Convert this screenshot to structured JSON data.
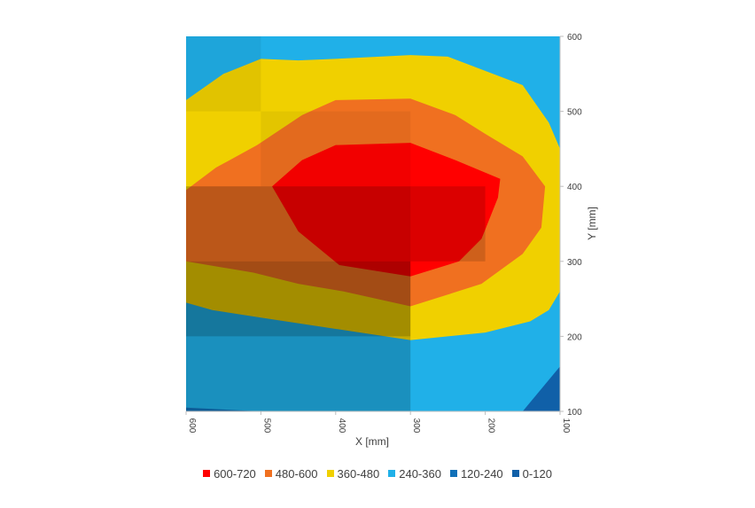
{
  "chart_data": {
    "type": "contour",
    "xlabel": "X [mm]",
    "ylabel": "Y [mm]",
    "xlim": [
      600,
      100
    ],
    "ylim": [
      100,
      600
    ],
    "x_ticks": [
      "600",
      "500",
      "400",
      "300",
      "200",
      "100"
    ],
    "y_ticks": [
      "600",
      "500",
      "400",
      "300",
      "200",
      "100"
    ],
    "x_reversed": true,
    "grid": false,
    "legend_position": "bottom",
    "bands": [
      {
        "label": "600-720",
        "min": 600,
        "max": 720,
        "color": "#ff0000"
      },
      {
        "label": "480-600",
        "min": 480,
        "max": 600,
        "color": "#f07020"
      },
      {
        "label": "360-480",
        "min": 360,
        "max": 480,
        "color": "#f0d000"
      },
      {
        "label": "240-360",
        "min": 240,
        "max": 360,
        "color": "#20b0e8"
      },
      {
        "label": "120-240",
        "min": 120,
        "max": 240,
        "color": "#1070b8"
      },
      {
        "label": "0-120",
        "min": 0,
        "max": 120,
        "color": "#1060a8"
      }
    ],
    "contours": [
      {
        "band": "600-720",
        "points": [
          [
            485,
            400
          ],
          [
            445,
            435
          ],
          [
            400,
            455
          ],
          [
            300,
            458
          ],
          [
            240,
            435
          ],
          [
            180,
            410
          ],
          [
            183,
            385
          ],
          [
            205,
            330
          ],
          [
            235,
            300
          ],
          [
            300,
            280
          ],
          [
            395,
            295
          ],
          [
            450,
            340
          ]
        ]
      },
      {
        "band": "480-600",
        "points": [
          [
            600,
            395
          ],
          [
            560,
            425
          ],
          [
            505,
            455
          ],
          [
            445,
            495
          ],
          [
            400,
            515
          ],
          [
            300,
            517
          ],
          [
            240,
            495
          ],
          [
            200,
            470
          ],
          [
            150,
            440
          ],
          [
            120,
            400
          ],
          [
            125,
            345
          ],
          [
            150,
            310
          ],
          [
            205,
            270
          ],
          [
            300,
            240
          ],
          [
            390,
            260
          ],
          [
            450,
            270
          ],
          [
            510,
            285
          ],
          [
            600,
            300
          ]
        ]
      },
      {
        "band": "360-480",
        "points": [
          [
            600,
            515
          ],
          [
            550,
            550
          ],
          [
            500,
            570
          ],
          [
            450,
            568
          ],
          [
            400,
            570
          ],
          [
            300,
            575
          ],
          [
            250,
            573
          ],
          [
            150,
            535
          ],
          [
            115,
            485
          ],
          [
            100,
            450
          ],
          [
            100,
            260
          ],
          [
            115,
            235
          ],
          [
            140,
            220
          ],
          [
            200,
            205
          ],
          [
            300,
            195
          ],
          [
            400,
            210
          ],
          [
            500,
            225
          ],
          [
            565,
            235
          ],
          [
            600,
            245
          ]
        ]
      }
    ],
    "base_band": "240-360",
    "bottom_bands": [
      {
        "band": "120-240",
        "points": [
          [
            600,
            100
          ],
          [
            600,
            105
          ],
          [
            500,
            100
          ]
        ]
      },
      {
        "band": "0-120",
        "points": [
          [
            100,
            100
          ],
          [
            100,
            160
          ],
          [
            150,
            100
          ]
        ]
      }
    ],
    "shading": [
      {
        "x0": 600,
        "x1": 300,
        "y0": 100,
        "y1": 200,
        "opacity": 0.18
      },
      {
        "x0": 600,
        "x1": 300,
        "y0": 200,
        "y1": 300,
        "opacity": 0.32
      },
      {
        "x0": 600,
        "x1": 300,
        "y0": 300,
        "y1": 400,
        "opacity": 0.22
      },
      {
        "x0": 300,
        "x1": 200,
        "y0": 300,
        "y1": 400,
        "opacity": 0.14
      },
      {
        "x0": 600,
        "x1": 500,
        "y0": 500,
        "y1": 600,
        "opacity": 0.06
      },
      {
        "x0": 500,
        "x1": 300,
        "y0": 400,
        "y1": 500,
        "opacity": 0.05
      }
    ]
  }
}
